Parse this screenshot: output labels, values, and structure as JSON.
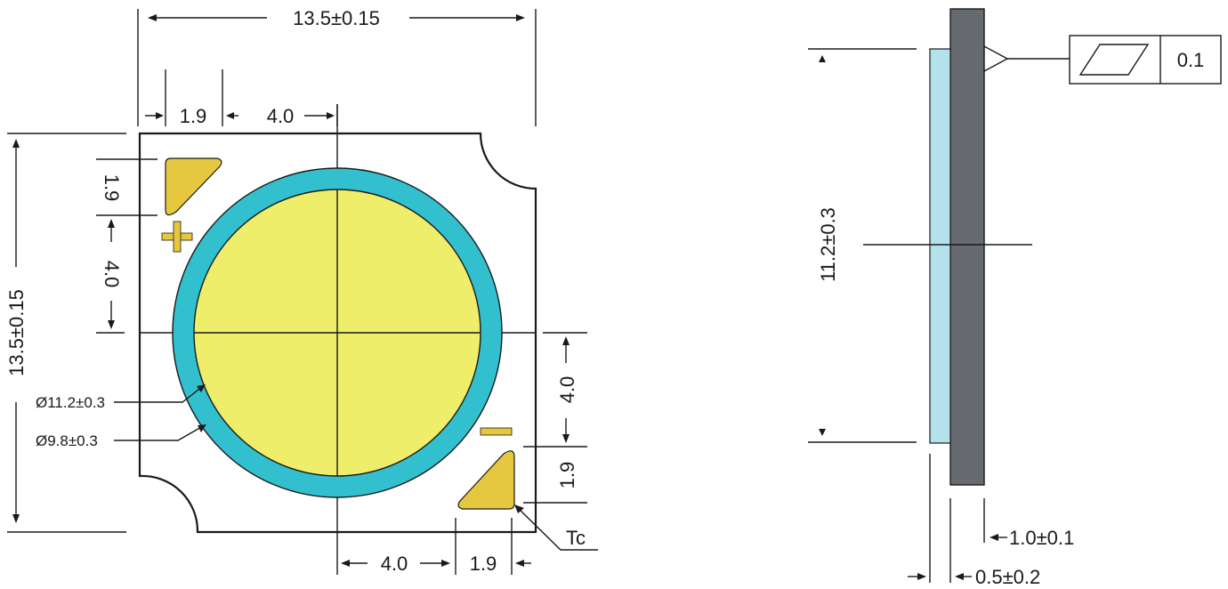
{
  "front_view": {
    "width_label": "13.5±0.15",
    "height_label": "13.5±0.15",
    "top_offset_label": "1.9",
    "top_spacing_label": "4.0",
    "left_offset_label": "1.9",
    "left_spacing_label": "4.0",
    "right_spacing_label": "4.0",
    "right_offset_label": "1.9",
    "bottom_spacing_label": "4.0",
    "bottom_offset_label": "1.9",
    "outer_diameter_label": "Ø11.2±0.3",
    "inner_diameter_label": "Ø9.8±0.3",
    "tc_label": "Tc"
  },
  "side_view": {
    "height_label": "11.2±0.3",
    "flatness_value": "0.1",
    "substrate_thickness_label": "1.0±0.1",
    "phosphor_thickness_label": "0.5±0.2"
  },
  "colors": {
    "substrate_outline": "#1a1a1a",
    "ring": "#32c0cf",
    "emitting_surface": "#eeee6a",
    "pads": "#e6c840",
    "side_substrate": "#676a70",
    "side_phosphor": "#b4e2ec"
  }
}
